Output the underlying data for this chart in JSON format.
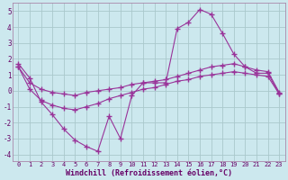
{
  "title": "",
  "xlabel": "Windchill (Refroidissement éolien,°C)",
  "bg_color": "#cce8ee",
  "grid_color": "#aac8cc",
  "line_color": "#993399",
  "xlim": [
    -0.5,
    23.5
  ],
  "ylim": [
    -4.4,
    5.5
  ],
  "yticks": [
    -4,
    -3,
    -2,
    -1,
    0,
    1,
    2,
    3,
    4,
    5
  ],
  "xticks": [
    0,
    1,
    2,
    3,
    4,
    5,
    6,
    7,
    8,
    9,
    10,
    11,
    12,
    13,
    14,
    15,
    16,
    17,
    18,
    19,
    20,
    21,
    22,
    23
  ],
  "series": [
    {
      "x": [
        0,
        1,
        2,
        3,
        4,
        5,
        6,
        7,
        8,
        9,
        10,
        11,
        12,
        13,
        14,
        15,
        16,
        17,
        18,
        19,
        20,
        21,
        22,
        23
      ],
      "y": [
        1.7,
        0.8,
        -0.7,
        -1.5,
        -2.4,
        -3.1,
        -3.5,
        -3.8,
        -1.6,
        -3.0,
        -0.3,
        0.5,
        0.5,
        0.5,
        3.9,
        4.3,
        5.1,
        4.8,
        3.6,
        2.3,
        1.5,
        1.1,
        1.1,
        -0.2
      ]
    },
    {
      "x": [
        0,
        1,
        2,
        3,
        4,
        5,
        6,
        7,
        8,
        9,
        10,
        11,
        12,
        13,
        14,
        15,
        16,
        17,
        18,
        19,
        20,
        21,
        22,
        23
      ],
      "y": [
        1.5,
        0.5,
        0.1,
        -0.1,
        -0.2,
        -0.3,
        -0.1,
        0.0,
        0.1,
        0.2,
        0.4,
        0.5,
        0.6,
        0.7,
        0.9,
        1.1,
        1.3,
        1.5,
        1.6,
        1.7,
        1.5,
        1.3,
        1.2,
        -0.1
      ]
    },
    {
      "x": [
        0,
        1,
        2,
        3,
        4,
        5,
        6,
        7,
        8,
        9,
        10,
        11,
        12,
        13,
        14,
        15,
        16,
        17,
        18,
        19,
        20,
        21,
        22,
        23
      ],
      "y": [
        1.5,
        0.1,
        -0.6,
        -0.9,
        -1.1,
        -1.2,
        -1.0,
        -0.8,
        -0.5,
        -0.3,
        -0.1,
        0.1,
        0.2,
        0.4,
        0.6,
        0.7,
        0.9,
        1.0,
        1.1,
        1.2,
        1.1,
        1.0,
        0.9,
        -0.2
      ]
    }
  ]
}
